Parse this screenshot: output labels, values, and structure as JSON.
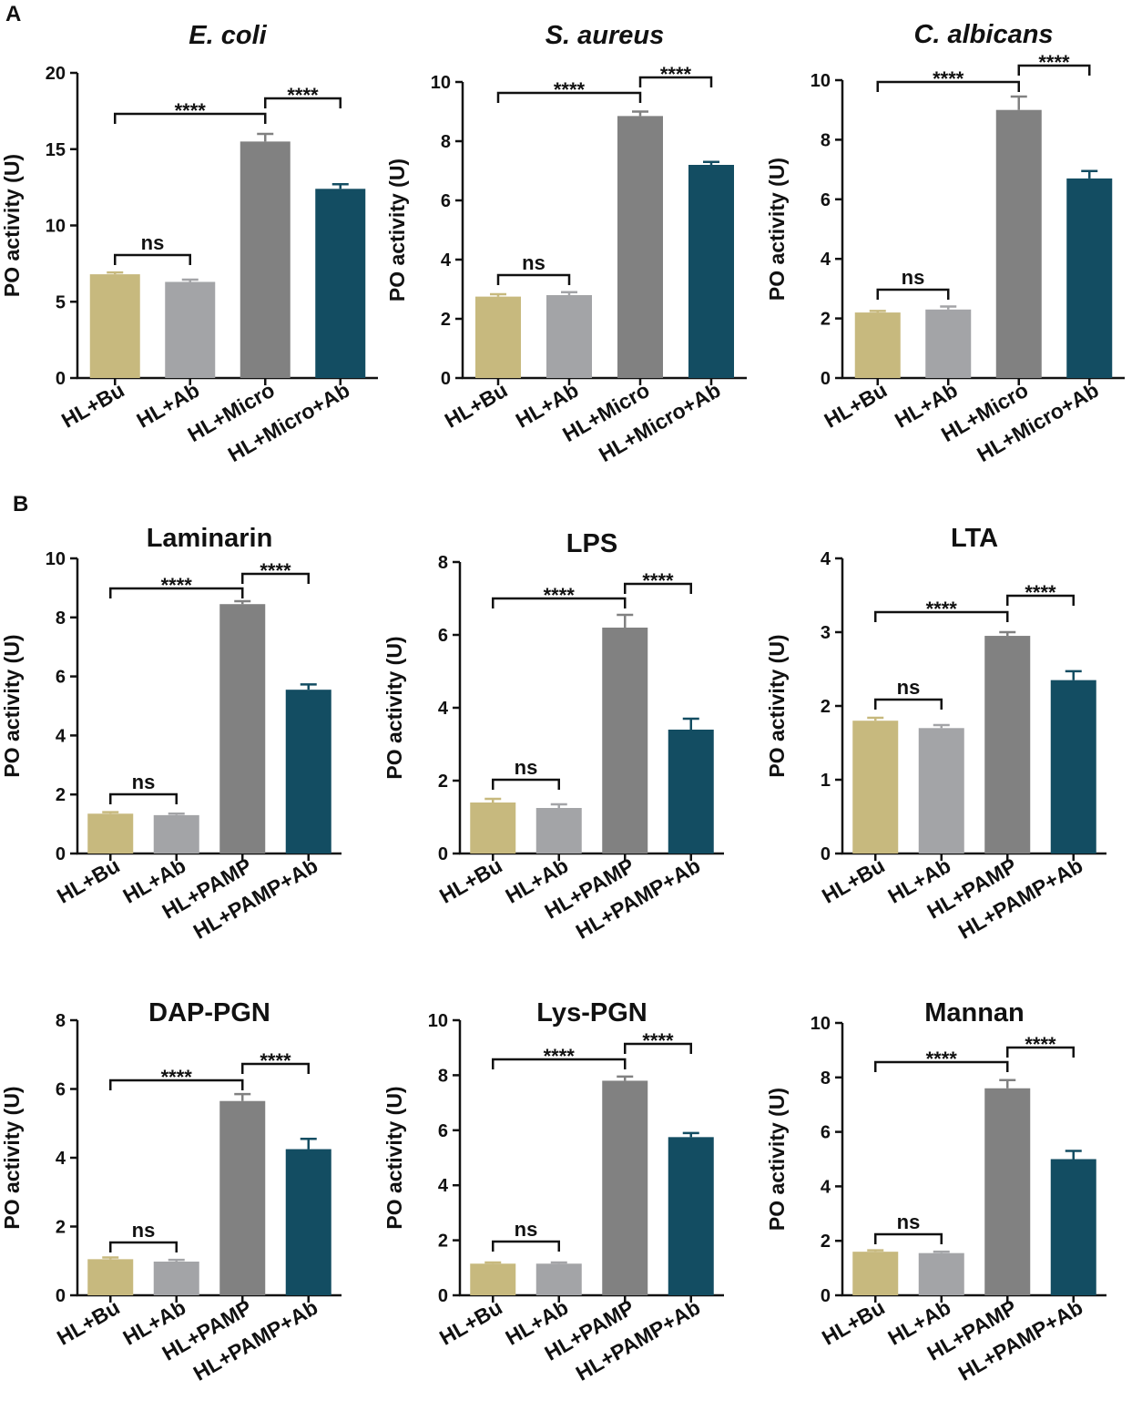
{
  "panel_labels": {
    "a": "A",
    "b": "B"
  },
  "colors": {
    "bu": "#c7b97e",
    "ab": "#a3a4a7",
    "micro": "#818181",
    "micro_ab": "#134d62",
    "axis": "#111111"
  },
  "chart_data": [
    {
      "type": "bar",
      "panel": "A",
      "title": "E. coli",
      "title_italic": true,
      "ylabel": "PO activity (U)",
      "ylim": [
        0,
        20
      ],
      "yticks": [
        0,
        5,
        10,
        15,
        20
      ],
      "categories": [
        "HL+Bu",
        "HL+Ab",
        "HL+Micro",
        "HL+Micro+Ab"
      ],
      "values": [
        6.8,
        6.3,
        15.5,
        12.4
      ],
      "errors": [
        0.12,
        0.15,
        0.5,
        0.3
      ],
      "significance": [
        {
          "from": 0,
          "to": 1,
          "label": "ns"
        },
        {
          "from": 0,
          "to": 2,
          "label": "****"
        },
        {
          "from": 2,
          "to": 3,
          "label": "****"
        }
      ]
    },
    {
      "type": "bar",
      "panel": "A",
      "title": "S. aureus",
      "title_italic": true,
      "ylabel": "PO activity (U)",
      "ylim": [
        0,
        10
      ],
      "yticks": [
        0,
        2,
        4,
        6,
        8,
        10
      ],
      "categories": [
        "HL+Bu",
        "HL+Ab",
        "HL+Micro",
        "HL+Micro+Ab"
      ],
      "values": [
        2.75,
        2.8,
        8.85,
        7.2
      ],
      "errors": [
        0.08,
        0.1,
        0.15,
        0.1
      ],
      "significance": [
        {
          "from": 0,
          "to": 1,
          "label": "ns"
        },
        {
          "from": 0,
          "to": 2,
          "label": "****"
        },
        {
          "from": 2,
          "to": 3,
          "label": "****"
        }
      ]
    },
    {
      "type": "bar",
      "panel": "A",
      "title": "C. albicans",
      "title_italic": true,
      "ylabel": "PO activity (U)",
      "ylim": [
        0,
        10
      ],
      "yticks": [
        0,
        2,
        4,
        6,
        8,
        10
      ],
      "categories": [
        "HL+Bu",
        "HL+Ab",
        "HL+Micro",
        "HL+Micro+Ab"
      ],
      "values": [
        2.2,
        2.3,
        9.0,
        6.7
      ],
      "errors": [
        0.05,
        0.1,
        0.45,
        0.25
      ],
      "significance": [
        {
          "from": 0,
          "to": 1,
          "label": "ns"
        },
        {
          "from": 0,
          "to": 2,
          "label": "****"
        },
        {
          "from": 2,
          "to": 3,
          "label": "****"
        }
      ]
    },
    {
      "type": "bar",
      "panel": "B",
      "title": "Laminarin",
      "title_italic": false,
      "ylabel": "PO activity (U)",
      "ylim": [
        0,
        10
      ],
      "yticks": [
        0,
        2,
        4,
        6,
        8,
        10
      ],
      "categories": [
        "HL+Bu",
        "HL+Ab",
        "HL+PAMP",
        "HL+PAMP+Ab"
      ],
      "values": [
        1.35,
        1.3,
        8.45,
        5.55
      ],
      "errors": [
        0.05,
        0.05,
        0.1,
        0.18
      ],
      "significance": [
        {
          "from": 0,
          "to": 1,
          "label": "ns"
        },
        {
          "from": 0,
          "to": 2,
          "label": "****"
        },
        {
          "from": 2,
          "to": 3,
          "label": "****"
        }
      ]
    },
    {
      "type": "bar",
      "panel": "B",
      "title": "LPS",
      "title_italic": false,
      "ylabel": "PO activity (U)",
      "ylim": [
        0,
        8
      ],
      "yticks": [
        0,
        2,
        4,
        6,
        8
      ],
      "categories": [
        "HL+Bu",
        "HL+Ab",
        "HL+PAMP",
        "HL+PAMP+Ab"
      ],
      "values": [
        1.4,
        1.25,
        6.2,
        3.4
      ],
      "errors": [
        0.1,
        0.1,
        0.35,
        0.3
      ],
      "significance": [
        {
          "from": 0,
          "to": 1,
          "label": "ns"
        },
        {
          "from": 0,
          "to": 2,
          "label": "****"
        },
        {
          "from": 2,
          "to": 3,
          "label": "****"
        }
      ]
    },
    {
      "type": "bar",
      "panel": "B",
      "title": "LTA",
      "title_italic": false,
      "ylabel": "PO activity (U)",
      "ylim": [
        0,
        4
      ],
      "yticks": [
        0,
        1,
        2,
        3,
        4
      ],
      "categories": [
        "HL+Bu",
        "HL+Ab",
        "HL+PAMP",
        "HL+PAMP+Ab"
      ],
      "values": [
        1.8,
        1.7,
        2.95,
        2.35
      ],
      "errors": [
        0.04,
        0.04,
        0.05,
        0.12
      ],
      "significance": [
        {
          "from": 0,
          "to": 1,
          "label": "ns"
        },
        {
          "from": 0,
          "to": 2,
          "label": "****"
        },
        {
          "from": 2,
          "to": 3,
          "label": "****"
        }
      ]
    },
    {
      "type": "bar",
      "panel": "B",
      "title": "DAP-PGN",
      "title_italic": false,
      "ylabel": "PO activity (U)",
      "ylim": [
        0,
        8
      ],
      "yticks": [
        0,
        2,
        4,
        6,
        8
      ],
      "categories": [
        "HL+Bu",
        "HL+Ab",
        "HL+PAMP",
        "HL+PAMP+Ab"
      ],
      "values": [
        1.05,
        0.98,
        5.65,
        4.25
      ],
      "errors": [
        0.05,
        0.05,
        0.2,
        0.3
      ],
      "significance": [
        {
          "from": 0,
          "to": 1,
          "label": "ns"
        },
        {
          "from": 0,
          "to": 2,
          "label": "****"
        },
        {
          "from": 2,
          "to": 3,
          "label": "****"
        }
      ]
    },
    {
      "type": "bar",
      "panel": "B",
      "title": "Lys-PGN",
      "title_italic": false,
      "ylabel": "PO activity (U)",
      "ylim": [
        0,
        10
      ],
      "yticks": [
        0,
        2,
        4,
        6,
        8,
        10
      ],
      "categories": [
        "HL+Bu",
        "HL+Ab",
        "HL+PAMP",
        "HL+PAMP+Ab"
      ],
      "values": [
        1.15,
        1.15,
        7.8,
        5.75
      ],
      "errors": [
        0.04,
        0.04,
        0.15,
        0.15
      ],
      "significance": [
        {
          "from": 0,
          "to": 1,
          "label": "ns"
        },
        {
          "from": 0,
          "to": 2,
          "label": "****"
        },
        {
          "from": 2,
          "to": 3,
          "label": "****"
        }
      ]
    },
    {
      "type": "bar",
      "panel": "B",
      "title": "Mannan",
      "title_italic": false,
      "ylabel": "PO activity (U)",
      "ylim": [
        0,
        10
      ],
      "yticks": [
        0,
        2,
        4,
        6,
        8,
        10
      ],
      "categories": [
        "HL+Bu",
        "HL+Ab",
        "HL+PAMP",
        "HL+PAMP+Ab"
      ],
      "values": [
        1.6,
        1.55,
        7.6,
        5.0
      ],
      "errors": [
        0.05,
        0.05,
        0.3,
        0.3
      ],
      "significance": [
        {
          "from": 0,
          "to": 1,
          "label": "ns"
        },
        {
          "from": 0,
          "to": 2,
          "label": "****"
        },
        {
          "from": 2,
          "to": 3,
          "label": "****"
        }
      ]
    }
  ]
}
